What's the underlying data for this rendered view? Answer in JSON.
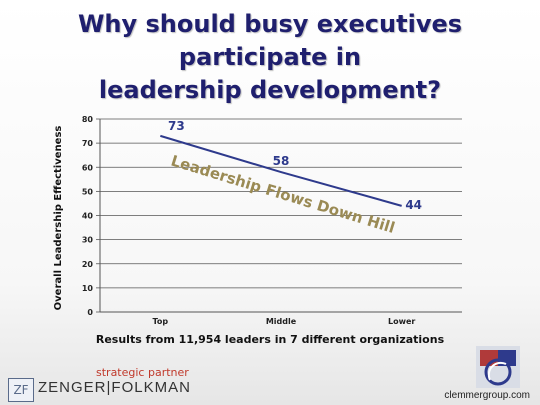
{
  "slide": {
    "title_line1": "Why should busy executives participate in",
    "title_line2": "leadership development?",
    "caption": "Results from 11,954 leaders in 7 different organizations"
  },
  "chart_data": {
    "type": "line",
    "categories": [
      "Top",
      "Middle",
      "Lower"
    ],
    "series": [
      {
        "values": [
          73,
          58,
          44
        ]
      }
    ],
    "data_labels": [
      "73",
      "58",
      "44"
    ],
    "ylabel": "Overall Leadership Effectiveness",
    "xlabel": "",
    "ylim": [
      0,
      80
    ],
    "yticks": [
      0,
      10,
      20,
      30,
      40,
      50,
      60,
      70,
      80
    ],
    "grid": true,
    "annotation": "Leadership Flows Down Hill",
    "line_color": "#2e3a8c",
    "annotation_color": "#9a8a54"
  },
  "footer": {
    "partner_label": "strategic partner",
    "logo_mark": "ZF",
    "logo_name": "ZENGER|FOLKMAN",
    "site": "clemmergroup.com"
  }
}
